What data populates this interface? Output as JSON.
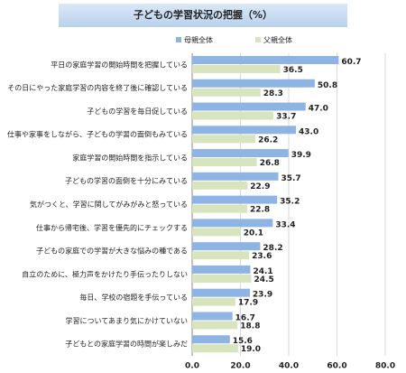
{
  "chart_data": {
    "type": "hbar",
    "title": "子どもの学習状況の把握（%）",
    "categories": [
      "平日の家庭学習の開始時間を把握している",
      "その日にやった家庭学習の内容を終了後に確認している",
      "子どもの学習を毎日促している",
      "仕事や家事をしながら、子どもの学習の面倒もみている",
      "家庭学習の開始時間を指示している",
      "子どもの学習の面倒を十分にみている",
      "気がつくと、学習に関してがみがみと怒っている",
      "仕事から帰宅後、学習を優先的にチェックする",
      "子どもの家庭での学習が大きな悩みの種である",
      "自立のために、極力声をかけたり手伝ったりしない",
      "毎日、学校の宿題を手伝っている",
      "学習についてあまり気にかけていない",
      "子どもとの家庭学習の時間が楽しみだ"
    ],
    "series": [
      {
        "name": "母親全体",
        "color": "#8eb4e3",
        "values": [
          60.7,
          50.8,
          47.0,
          43.0,
          39.9,
          35.7,
          35.2,
          33.4,
          28.2,
          24.1,
          23.9,
          16.7,
          15.6
        ],
        "value_labels": [
          "60.7",
          "50.8",
          "47.0",
          "43.0",
          "39.9",
          "35.7",
          "35.2",
          "33.4",
          "28.2",
          "24.1",
          "23.9",
          "16.7",
          "15.6"
        ]
      },
      {
        "name": "父親全体",
        "color": "#d7e4bd",
        "values": [
          36.5,
          28.3,
          33.7,
          26.2,
          26.8,
          22.9,
          22.8,
          20.1,
          23.6,
          24.5,
          17.9,
          18.8,
          19.0
        ],
        "value_labels": [
          "36.5",
          "28.3",
          "33.7",
          "26.2",
          "26.8",
          "22.9",
          "22.8",
          "20.1",
          "23.6",
          "24.5",
          "17.9",
          "18.8",
          "19.0"
        ]
      }
    ],
    "xlim": [
      0,
      80
    ],
    "xticks": [
      {
        "value": 0,
        "label": "0.0"
      },
      {
        "value": 20,
        "label": "20.0"
      },
      {
        "value": 40,
        "label": "40.0"
      },
      {
        "value": 60,
        "label": "60.0"
      },
      {
        "value": 80,
        "label": "80.0"
      }
    ],
    "grid": true
  }
}
